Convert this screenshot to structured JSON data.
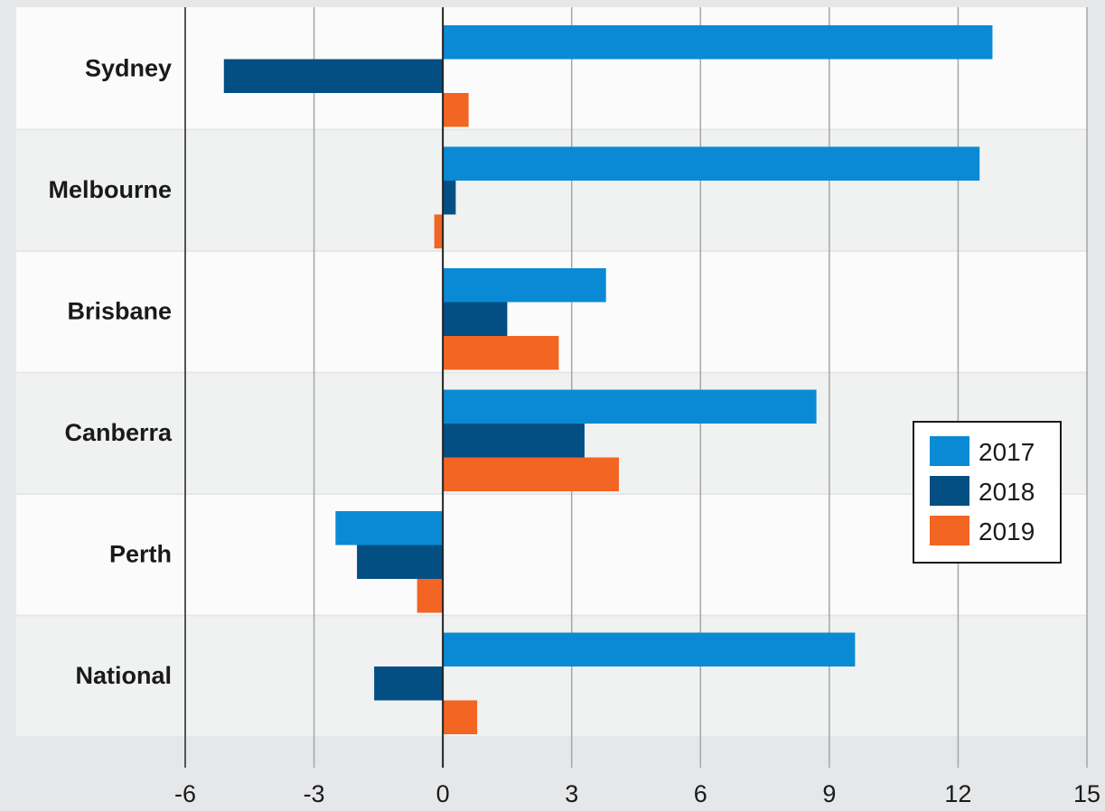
{
  "chart_data": {
    "type": "bar",
    "orientation": "horizontal",
    "categories": [
      "Sydney",
      "Melbourne",
      "Brisbane",
      "Canberra",
      "Perth",
      "National"
    ],
    "series": [
      {
        "name": "2017",
        "color": "#0a8ad4",
        "values": [
          12.8,
          12.5,
          3.8,
          8.7,
          -2.5,
          9.6
        ]
      },
      {
        "name": "2018",
        "color": "#034f84",
        "values": [
          -5.1,
          0.3,
          1.5,
          3.3,
          -2.0,
          -1.6
        ]
      },
      {
        "name": "2019",
        "color": "#f26522",
        "values": [
          0.6,
          -0.2,
          2.7,
          4.1,
          -0.6,
          0.8
        ]
      }
    ],
    "xlim": [
      -6,
      15
    ],
    "xticks": [
      "-6",
      "-3",
      "0",
      "3",
      "6",
      "9",
      "12",
      "15"
    ],
    "grid": "vertical",
    "legend": {
      "placement": "right",
      "entries": [
        "2017",
        "2018",
        "2019"
      ]
    },
    "title": "",
    "xlabel": "",
    "ylabel": ""
  },
  "colors": {
    "band_light": "#fbfbfb",
    "band_dark": "#f0f1f1",
    "background": "#e6e7e9",
    "grid": "#a6a6a6",
    "zero_line": "#222222"
  }
}
